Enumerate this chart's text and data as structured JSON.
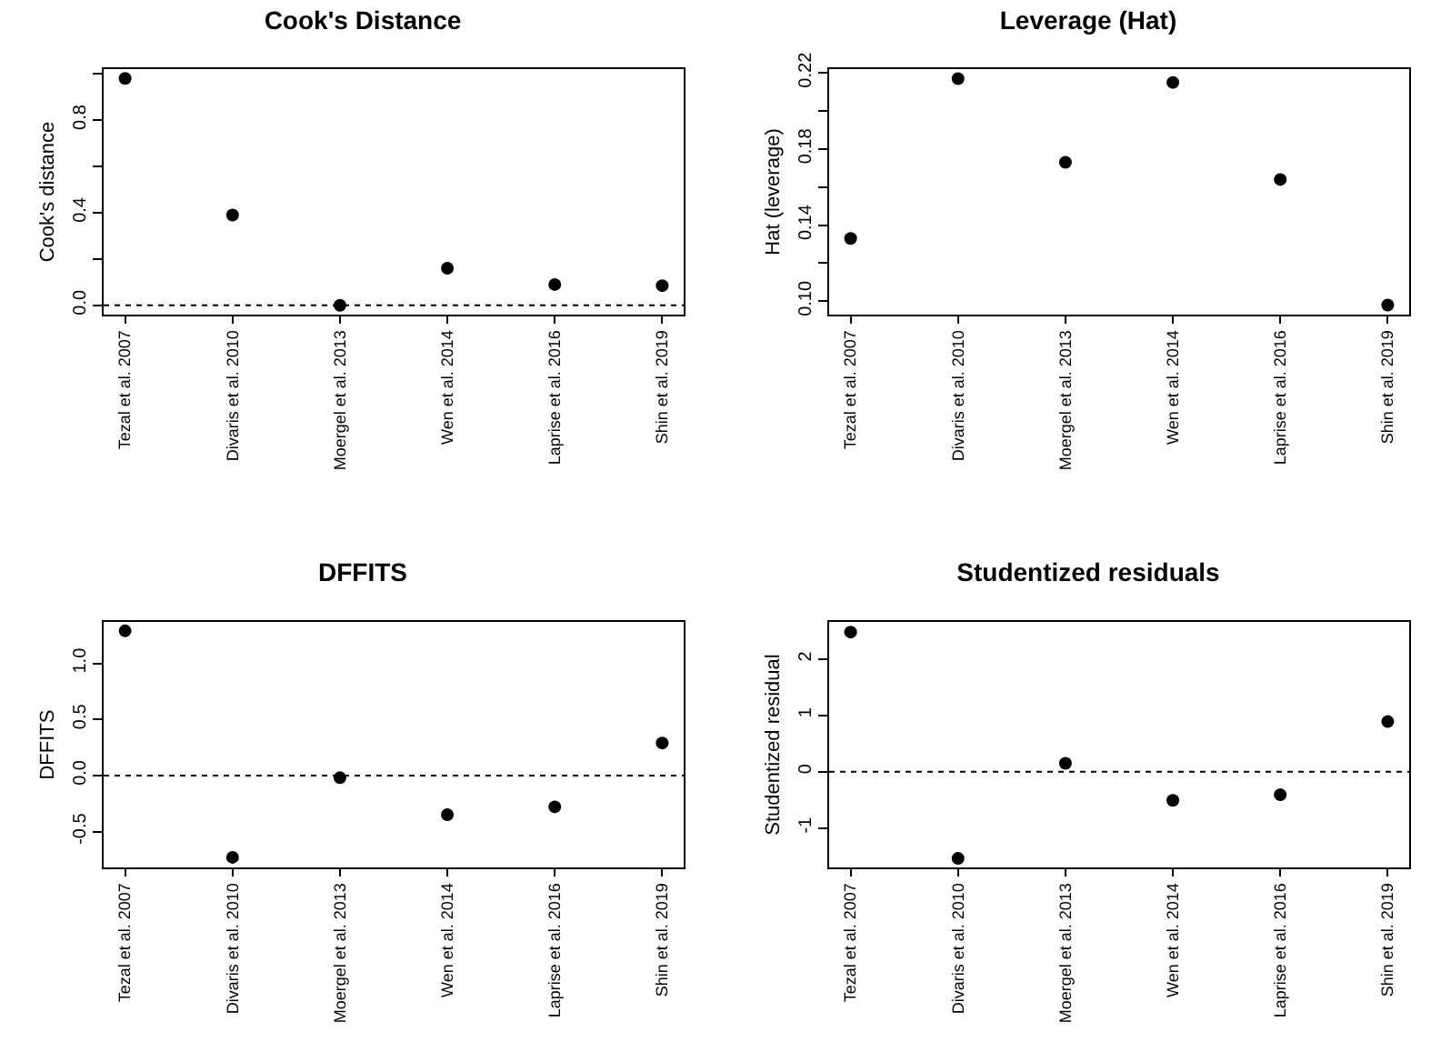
{
  "chart_data": [
    {
      "type": "scatter",
      "title": "Cook's Distance",
      "ylabel": "Cook's distance",
      "categories": [
        "Tezal et al. 2007",
        "Divaris et al. 2010",
        "Moergel et al. 2013",
        "Wen et al. 2014",
        "Laprise et al. 2016",
        "Shin et al. 2019"
      ],
      "series": [
        {
          "color": "#000000",
          "values": [
            0.98,
            0.39,
            0.0,
            0.16,
            0.09,
            0.085
          ]
        }
      ],
      "ylim": [
        -0.04,
        1.02
      ],
      "yticks": [
        {
          "value": 0,
          "label": "0.0"
        },
        {
          "value": 0.2,
          "label": null
        },
        0.4,
        {
          "value": 0.6,
          "label": null
        },
        0.8,
        {
          "value": 1.0,
          "label": null
        }
      ],
      "ref_lines": [
        {
          "axis": "y",
          "value": 0,
          "line_style": "dotted",
          "color": "#000000"
        }
      ],
      "marker": "circle",
      "grid": false
    },
    {
      "type": "scatter",
      "title": "Leverage (Hat)",
      "ylabel": "Hat (leverage)",
      "categories": [
        "Tezal et al. 2007",
        "Divaris et al. 2010",
        "Moergel et al. 2013",
        "Wen et al. 2014",
        "Laprise et al. 2016",
        "Shin et al. 2019"
      ],
      "series": [
        {
          "color": "#000000",
          "values": [
            0.133,
            0.217,
            0.173,
            0.215,
            0.164,
            0.098
          ]
        }
      ],
      "ylim": [
        0.093,
        0.222
      ],
      "yticks": [
        {
          "value": 0.1,
          "label": "0.10"
        },
        {
          "value": 0.12,
          "label": null
        },
        0.14,
        {
          "value": 0.16,
          "label": null
        },
        0.18,
        {
          "value": 0.2,
          "label": null
        },
        0.22
      ],
      "marker": "circle",
      "grid": false
    },
    {
      "type": "scatter",
      "title": "DFFITS",
      "ylabel": "DFFITS",
      "categories": [
        "Tezal et al. 2007",
        "Divaris et al. 2010",
        "Moergel et al. 2013",
        "Wen et al. 2014",
        "Laprise et al. 2016",
        "Shin et al. 2019"
      ],
      "series": [
        {
          "color": "#000000",
          "values": [
            1.29,
            -0.73,
            -0.02,
            -0.35,
            -0.28,
            0.29
          ]
        }
      ],
      "ylim": [
        -0.82,
        1.37
      ],
      "yticks": [
        -0.5,
        {
          "value": 0,
          "label": "0.0"
        },
        0.5,
        {
          "value": 1,
          "label": "1.0"
        }
      ],
      "ref_lines": [
        {
          "axis": "y",
          "value": 0,
          "line_style": "dotted",
          "color": "#000000"
        }
      ],
      "marker": "circle",
      "grid": false
    },
    {
      "type": "scatter",
      "title": "Studentized residuals",
      "ylabel": "Studentized residual",
      "categories": [
        "Tezal et al. 2007",
        "Divaris et al. 2010",
        "Moergel et al. 2013",
        "Wen et al. 2014",
        "Laprise et al. 2016",
        "Shin et al. 2019"
      ],
      "series": [
        {
          "color": "#000000",
          "values": [
            2.48,
            -1.54,
            0.15,
            -0.51,
            -0.41,
            0.89
          ]
        }
      ],
      "ylim": [
        -1.7,
        2.66
      ],
      "yticks": [
        -1,
        0,
        1,
        2
      ],
      "ref_lines": [
        {
          "axis": "y",
          "value": 0,
          "line_style": "dotted",
          "color": "#000000"
        }
      ],
      "marker": "circle",
      "grid": false
    }
  ]
}
